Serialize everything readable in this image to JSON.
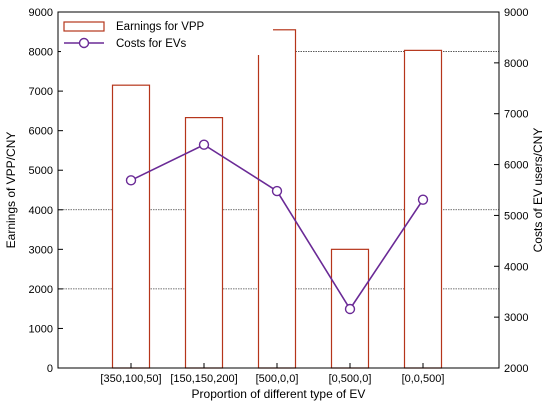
{
  "chart_data": {
    "type": "bar",
    "title": "",
    "xlabel": "Proportion of different type of EV",
    "ylabel_left": "Earnings of VPP/CNY",
    "ylabel_right": "Costs of EV users/CNY",
    "categories": [
      "[350,100,50]",
      "[150,150,200]",
      "[500,0,0]",
      "[0,500,0]",
      "[0,0,500]"
    ],
    "ylim_left": [
      0,
      9000
    ],
    "yticks_left": [
      0,
      1000,
      2000,
      3000,
      4000,
      5000,
      6000,
      7000,
      8000,
      9000
    ],
    "ylim_right": [
      2000,
      9000
    ],
    "yticks_right": [
      2000,
      3000,
      4000,
      5000,
      6000,
      7000,
      8000,
      9000
    ],
    "grid": "horizontal gridlines at 2000, 4000 and 8000 on the left axis",
    "legend_position": "top-left",
    "series": [
      {
        "name": "Earnings for VPP",
        "type": "bar",
        "axis": "left",
        "color": "#b5351a",
        "values": [
          7150,
          6330,
          8550,
          3000,
          8030
        ]
      },
      {
        "name": "Costs for EVs",
        "type": "line",
        "axis": "right",
        "color": "#6a2a96",
        "marker": "circle",
        "values": [
          5690,
          6390,
          5480,
          3160,
          5310
        ]
      }
    ]
  }
}
